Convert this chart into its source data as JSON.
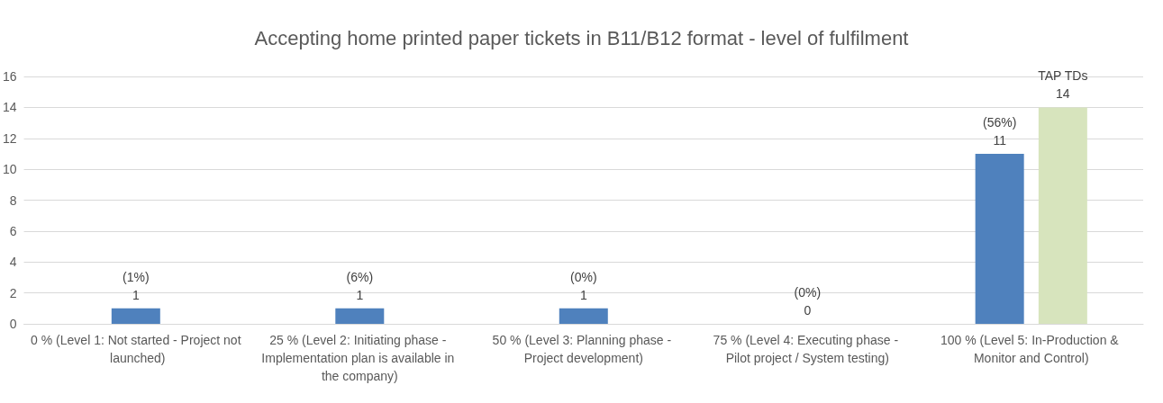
{
  "chart_data": {
    "type": "bar",
    "title": "Accepting home printed paper tickets in B11/B12 format - level of fulfilment",
    "categories": [
      "0 % (Level 1: Not started - Project not launched)",
      "25 % (Level 2: Initiating phase - Implementation plan is available in the company)",
      "50 % (Level 3: Planning phase - Project development)",
      "75 % (Level 4: Executing phase - Pilot project / System testing)",
      "100 % (Level 5: In-Production & Monitor and Control)"
    ],
    "series": [
      {
        "color": "#4f81bd",
        "values": [
          1,
          1,
          1,
          0,
          11
        ],
        "value_labels": [
          "(1%)\n1",
          "(6%)\n1",
          "(0%)\n1",
          "(0%)\n0",
          "(56%)\n11"
        ]
      },
      {
        "name": "TAP TDs",
        "color": "#d7e4bd",
        "values": [
          null,
          null,
          null,
          null,
          14
        ],
        "value_labels": [
          null,
          null,
          null,
          null,
          "14"
        ]
      }
    ],
    "ylim": [
      0,
      16
    ],
    "yticks": [
      0,
      2,
      4,
      6,
      8,
      10,
      12,
      14,
      16
    ],
    "grid": "y",
    "legend": false
  }
}
